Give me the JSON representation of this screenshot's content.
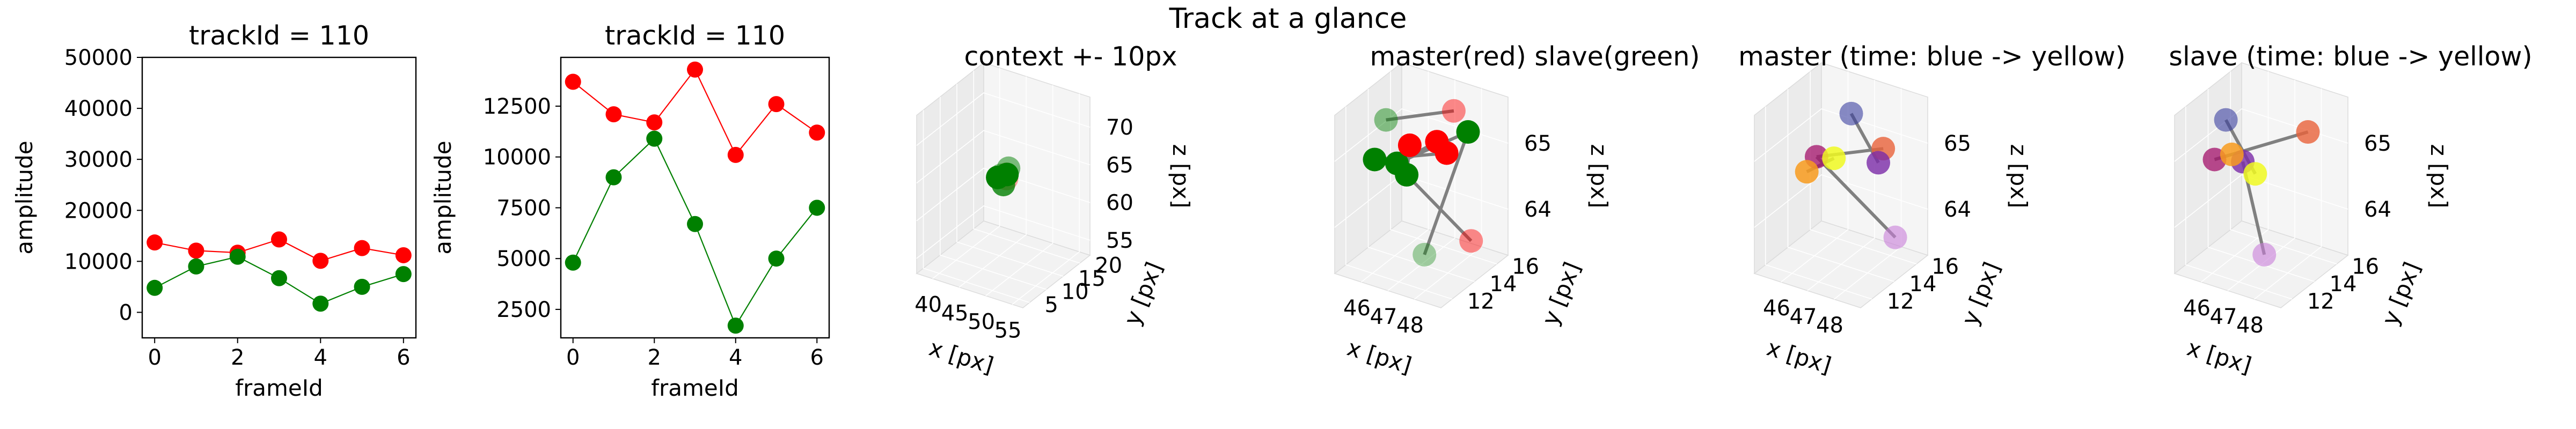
{
  "figure": {
    "suptitle": "Track at a glance"
  },
  "colors": {
    "master": "#ff0000",
    "slave": "#008000",
    "edge": "#808080"
  },
  "chart_data": [
    {
      "type": "line",
      "title": "trackId = 110",
      "xlabel": "frameId",
      "ylabel": "amplitude",
      "xlim": [
        -0.3,
        6.3
      ],
      "ylim": [
        -5000,
        50000
      ],
      "xticks": [
        "0",
        "2",
        "4",
        "6"
      ],
      "yticks": [
        "0",
        "10000",
        "20000",
        "30000",
        "40000",
        "50000"
      ],
      "series": [
        {
          "color": "#ff0000",
          "x": [
            0,
            1,
            2,
            3,
            4,
            5,
            6
          ],
          "values": [
            13700,
            12100,
            11700,
            14300,
            10100,
            12600,
            11200
          ]
        },
        {
          "color": "#008000",
          "x": [
            0,
            1,
            2,
            3,
            4,
            5,
            6
          ],
          "values": [
            4800,
            9000,
            10900,
            6700,
            1700,
            5000,
            7500
          ]
        }
      ]
    },
    {
      "type": "line",
      "title": "trackId = 110",
      "xlabel": "frameId",
      "ylabel": "amplitude",
      "xlim": [
        -0.3,
        6.3
      ],
      "ylim": [
        1100,
        14900
      ],
      "xticks": [
        "0",
        "2",
        "4",
        "6"
      ],
      "yticks": [
        "2500",
        "5000",
        "7500",
        "10000",
        "12500"
      ],
      "series": [
        {
          "color": "#ff0000",
          "x": [
            0,
            1,
            2,
            3,
            4,
            5,
            6
          ],
          "values": [
            13700,
            12100,
            11700,
            14300,
            10100,
            12600,
            11200
          ]
        },
        {
          "color": "#008000",
          "x": [
            0,
            1,
            2,
            3,
            4,
            5,
            6
          ],
          "values": [
            4800,
            9000,
            10900,
            6700,
            1700,
            5000,
            7500
          ]
        }
      ]
    },
    {
      "type": "scatter",
      "title": "context +- 10px",
      "xlabel": "x [px]",
      "ylabel": "y [px]",
      "zlabel": "z [px]",
      "xlim": [
        37,
        57
      ],
      "ylim": [
        3,
        23
      ],
      "zlim": [
        53,
        74
      ],
      "xticks": [
        "40",
        "45",
        "50",
        "55"
      ],
      "yticks": [
        "5",
        "10",
        "15",
        "20"
      ],
      "zticks": [
        "55",
        "60",
        "65",
        "70"
      ],
      "points": [
        {
          "x": 47,
          "y": 14,
          "z": 64.6,
          "color": "#ff0000",
          "alpha": 0.35
        },
        {
          "x": 47.3,
          "y": 13.5,
          "z": 64.3,
          "color": "#ff0000",
          "alpha": 0.35
        },
        {
          "x": 46.4,
          "y": 13.2,
          "z": 64.6,
          "color": "#008000",
          "alpha": 0.45
        },
        {
          "x": 46.8,
          "y": 14.4,
          "z": 64.4,
          "color": "#008000",
          "alpha": 1
        },
        {
          "x": 46.2,
          "y": 12.6,
          "z": 64.5,
          "color": "#008000",
          "alpha": 1
        },
        {
          "x": 47.4,
          "y": 12.4,
          "z": 63.9,
          "color": "#008000",
          "alpha": 0.8
        },
        {
          "x": 46.6,
          "y": 15.2,
          "z": 64.9,
          "color": "#008000",
          "alpha": 0.5
        }
      ],
      "edges": [
        [
          1,
          4
        ],
        [
          2,
          5
        ],
        [
          0,
          3
        ]
      ]
    },
    {
      "type": "scatter",
      "title": "master(red) slave(green)",
      "xlabel": "x [px]",
      "ylabel": "y [px]",
      "zlabel": "z [px]",
      "xlim": [
        45,
        49
      ],
      "ylim": [
        11,
        17
      ],
      "zlim": [
        63.3,
        65.7
      ],
      "xticks": [
        "46",
        "47",
        "48"
      ],
      "yticks": [
        "12",
        "14",
        "16"
      ],
      "zticks": [
        "64",
        "65"
      ],
      "points": [
        {
          "x": 46.3,
          "y": 12.5,
          "z": 65.6,
          "color": "#008000",
          "alpha": 0.45
        },
        {
          "x": 46.5,
          "y": 13.0,
          "z": 64.9,
          "color": "#008000",
          "alpha": 1
        },
        {
          "x": 46.0,
          "y": 12.2,
          "z": 65.0,
          "color": "#008000",
          "alpha": 1
        },
        {
          "x": 46.7,
          "y": 13.4,
          "z": 64.7,
          "color": "#008000",
          "alpha": 1
        },
        {
          "x": 47.2,
          "y": 13.8,
          "z": 63.5,
          "color": "#008000",
          "alpha": 0.35
        },
        {
          "x": 48.0,
          "y": 15.8,
          "z": 65.2,
          "color": "#008000",
          "alpha": 1
        },
        {
          "x": 46.9,
          "y": 13.2,
          "z": 65.2,
          "color": "#ff0000",
          "alpha": 1
        },
        {
          "x": 47.8,
          "y": 15.0,
          "z": 65.6,
          "color": "#ff0000",
          "alpha": 0.45
        },
        {
          "x": 47.5,
          "y": 14.2,
          "z": 65.2,
          "color": "#ff0000",
          "alpha": 1
        },
        {
          "x": 47.7,
          "y": 14.6,
          "z": 65.0,
          "color": "#ff0000",
          "alpha": 1
        },
        {
          "x": 48.2,
          "y": 15.6,
          "z": 63.6,
          "color": "#ff0000",
          "alpha": 0.45
        }
      ],
      "edges": [
        [
          0,
          7
        ],
        [
          1,
          8
        ],
        [
          2,
          9
        ],
        [
          3,
          10
        ],
        [
          4,
          5
        ],
        [
          1,
          5
        ],
        [
          3,
          6
        ]
      ]
    },
    {
      "type": "scatter",
      "title": "master (time: blue -> yellow)",
      "xlabel": "x [px]",
      "ylabel": "y [px]",
      "zlabel": "z [px]",
      "xlim": [
        45,
        49
      ],
      "ylim": [
        11,
        17
      ],
      "zlim": [
        63.3,
        65.7
      ],
      "xticks": [
        "46",
        "47",
        "48"
      ],
      "yticks": [
        "12",
        "14",
        "16"
      ],
      "zticks": [
        "64",
        "65"
      ],
      "points": [
        {
          "x": 47.3,
          "y": 14.2,
          "z": 65.6,
          "color": "#3b3fa0",
          "alpha": 0.6
        },
        {
          "x": 46.5,
          "y": 13.0,
          "z": 65.0,
          "color": "#a3106a",
          "alpha": 0.75
        },
        {
          "x": 48.0,
          "y": 15.4,
          "z": 65.0,
          "color": "#e8623a",
          "alpha": 0.8
        },
        {
          "x": 47.9,
          "y": 15.2,
          "z": 64.8,
          "color": "#7b2aa8",
          "alpha": 0.8
        },
        {
          "x": 46.3,
          "y": 12.6,
          "z": 64.8,
          "color": "#f89b1d",
          "alpha": 0.85
        },
        {
          "x": 46.9,
          "y": 13.6,
          "z": 64.95,
          "color": "#f0f921",
          "alpha": 0.85
        },
        {
          "x": 48.2,
          "y": 16.0,
          "z": 63.6,
          "color": "#c87dd8",
          "alpha": 0.6
        }
      ],
      "edges": [
        [
          0,
          3
        ],
        [
          1,
          2
        ],
        [
          4,
          5
        ],
        [
          1,
          6
        ]
      ]
    },
    {
      "type": "scatter",
      "title": "slave (time: blue -> yellow)",
      "xlabel": "x [px]",
      "ylabel": "y [px]",
      "zlabel": "z [px]",
      "xlim": [
        45,
        49
      ],
      "ylim": [
        11,
        17
      ],
      "zlim": [
        63.3,
        65.7
      ],
      "xticks": [
        "46",
        "47",
        "48"
      ],
      "yticks": [
        "12",
        "14",
        "16"
      ],
      "zticks": [
        "64",
        "65"
      ],
      "points": [
        {
          "x": 46.3,
          "y": 12.5,
          "z": 65.6,
          "color": "#3b3fa0",
          "alpha": 0.6
        },
        {
          "x": 46.0,
          "y": 12.2,
          "z": 65.0,
          "color": "#a3106a",
          "alpha": 0.75
        },
        {
          "x": 46.6,
          "y": 13.3,
          "z": 64.9,
          "color": "#7b2aa8",
          "alpha": 0.8
        },
        {
          "x": 48.0,
          "y": 15.8,
          "z": 65.2,
          "color": "#e8623a",
          "alpha": 0.8
        },
        {
          "x": 46.4,
          "y": 12.8,
          "z": 65.05,
          "color": "#f89b1d",
          "alpha": 0.85
        },
        {
          "x": 46.9,
          "y": 13.7,
          "z": 64.7,
          "color": "#f0f921",
          "alpha": 0.85
        },
        {
          "x": 47.2,
          "y": 13.8,
          "z": 63.5,
          "color": "#c87dd8",
          "alpha": 0.6
        }
      ],
      "edges": [
        [
          1,
          3
        ],
        [
          2,
          6
        ],
        [
          0,
          5
        ],
        [
          1,
          4
        ]
      ]
    }
  ]
}
